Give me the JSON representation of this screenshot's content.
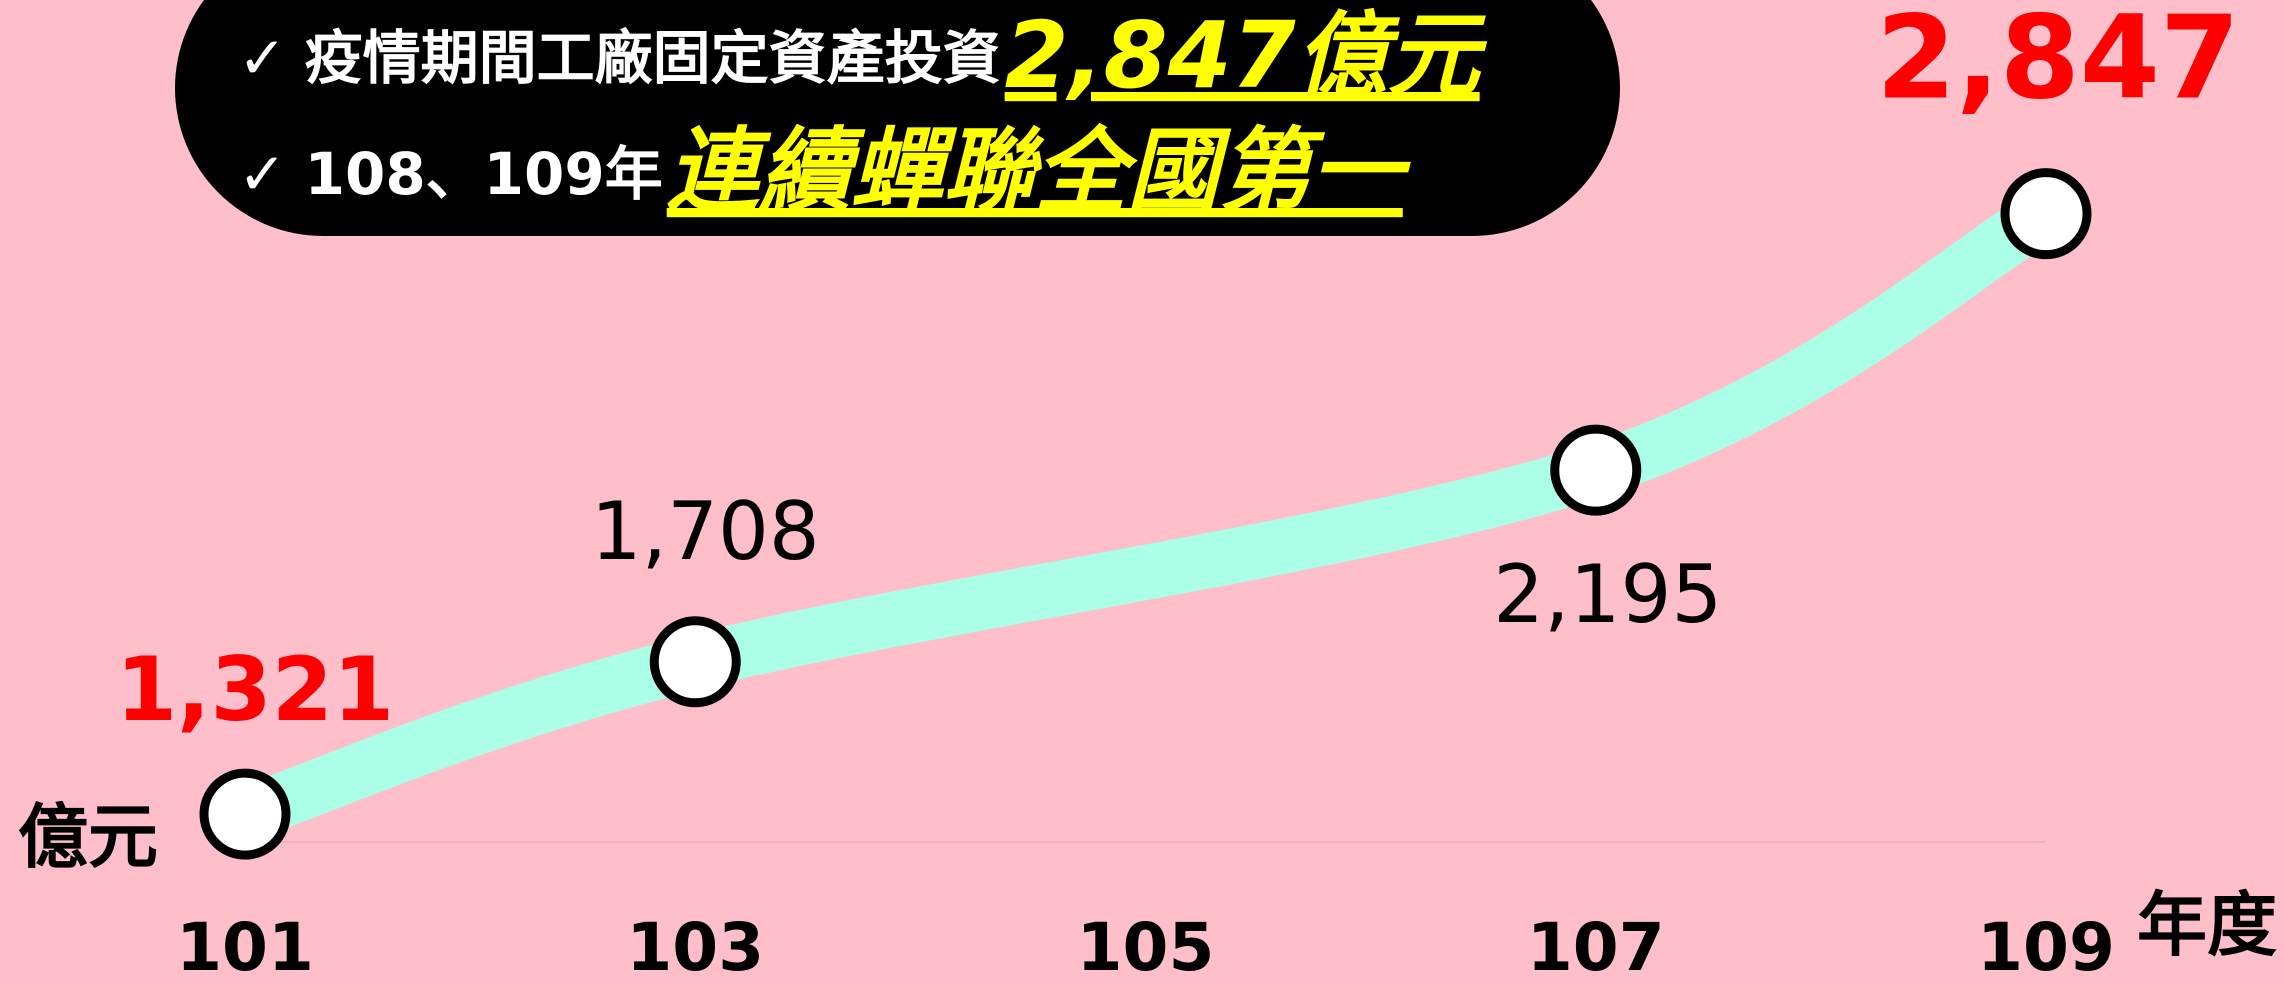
{
  "chart_data": {
    "type": "line",
    "x": [
      101,
      103,
      107,
      109
    ],
    "values": [
      1321,
      1708,
      2195,
      2847
    ],
    "value_labels": [
      "1,321",
      "1,708",
      "2,195",
      "2,847"
    ],
    "label_colors": [
      "#ff0000",
      "#000000",
      "#000000",
      "#ff0000"
    ],
    "label_bold": [
      true,
      false,
      false,
      true
    ],
    "color": "#aaffe6",
    "marker_fill": "#ffffff",
    "marker_edge": "#000000",
    "xlim": [
      101,
      109
    ],
    "xticks": [
      101,
      103,
      105,
      107,
      109
    ],
    "ylim": [
      1250,
      3390
    ],
    "x_unit_label": "年度",
    "y_unit_label": "億元",
    "annotation": {
      "lines": [
        {
          "check": "✓",
          "text": "疫情期間工廠固定資產投資",
          "highlight": "2,847億元"
        },
        {
          "check": "✓",
          "text": "108、109年",
          "highlight": "連續蟬聯全國第一"
        }
      ],
      "box_color": "#000000",
      "text_color": "#ffffff",
      "highlight_color": "#ffff00"
    }
  }
}
